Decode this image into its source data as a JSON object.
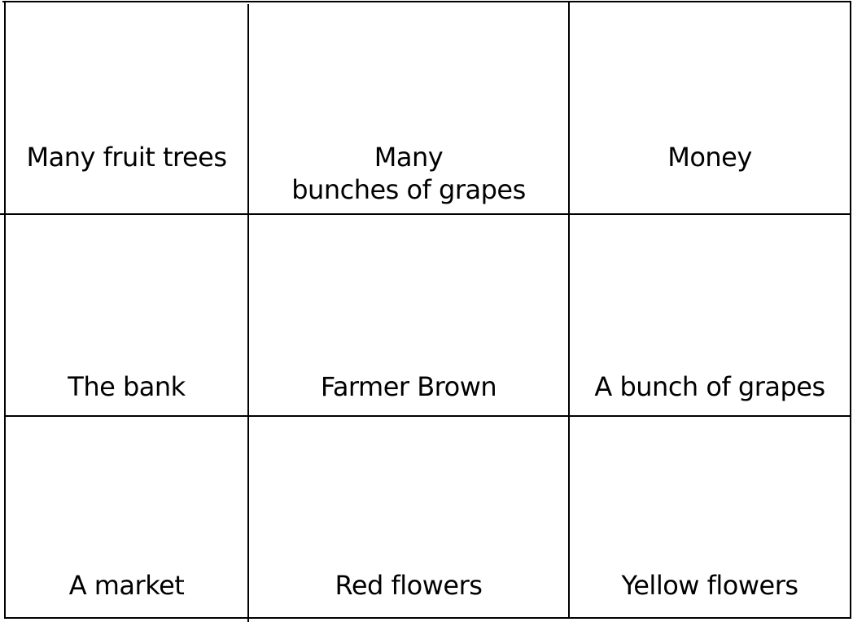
{
  "grid": {
    "rows": [
      [
        "Many fruit trees",
        "Many\nbunches of grapes",
        "Money"
      ],
      [
        "The bank",
        "Farmer Brown",
        "A bunch of grapes"
      ],
      [
        "A market",
        "Red flowers",
        "Yellow flowers"
      ]
    ]
  }
}
